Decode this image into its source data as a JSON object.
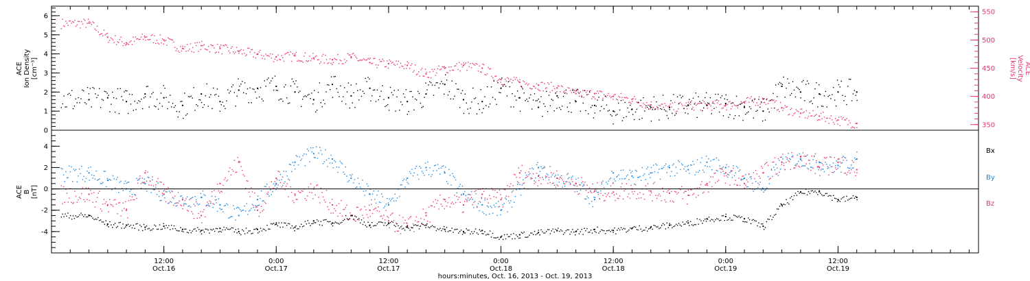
{
  "chart_data": [
    {
      "type": "scatter",
      "panel": "top",
      "ylabel_left": [
        "ACE",
        "Ion Density",
        "[cm⁻³]"
      ],
      "ylabel_right": [
        "ACE",
        "Velocity",
        "[km/s]"
      ],
      "ylim_left": [
        0,
        6.5
      ],
      "yticks_left": [
        "0",
        "1",
        "2",
        "3",
        "4",
        "5",
        "6"
      ],
      "ylim_right": [
        340,
        560
      ],
      "yticks_right": [
        "350",
        "400",
        "450",
        "500",
        "550"
      ],
      "grid": false,
      "colors": {
        "density": "#000000",
        "velocity": "#e8356a"
      },
      "series": [
        {
          "key": "density",
          "axis": "left",
          "x": [
            4,
            6,
            8,
            10,
            12,
            14,
            16,
            18,
            20,
            22,
            24,
            26,
            28,
            30,
            32,
            34,
            36,
            38,
            40,
            42,
            44,
            46,
            48,
            50,
            52,
            54,
            56,
            58,
            60,
            62,
            64,
            66,
            68,
            70,
            72,
            74,
            76,
            78,
            80,
            82,
            84,
            86
          ],
          "values": [
            1.6,
            1.7,
            1.5,
            1.9,
            1.7,
            1.3,
            1.9,
            1.5,
            2.1,
            2.2,
            2.3,
            2.0,
            1.6,
            2.4,
            1.8,
            2.2,
            1.7,
            1.5,
            1.9,
            2.4,
            1.6,
            1.5,
            2.2,
            1.7,
            1.2,
            1.8,
            1.5,
            1.3,
            1.0,
            1.1,
            1.2,
            1.2,
            1.3,
            1.3,
            1.4,
            1.2,
            1.0,
            2.3,
            2.0,
            1.9,
            2.0,
            2.0
          ]
        },
        {
          "key": "velocity",
          "axis": "right",
          "x": [
            4,
            6,
            8,
            10,
            12,
            14,
            16,
            18,
            20,
            22,
            24,
            26,
            28,
            30,
            32,
            34,
            36,
            38,
            40,
            42,
            44,
            46,
            48,
            50,
            52,
            54,
            56,
            58,
            60,
            62,
            64,
            66,
            68,
            70,
            72,
            74,
            76,
            78,
            80,
            82,
            84,
            86
          ],
          "values": [
            530,
            505,
            495,
            505,
            500,
            485,
            490,
            485,
            480,
            475,
            470,
            472,
            468,
            465,
            470,
            460,
            458,
            455,
            440,
            450,
            455,
            450,
            430,
            425,
            420,
            415,
            405,
            405,
            400,
            395,
            385,
            380,
            385,
            385,
            385,
            390,
            395,
            380,
            370,
            365,
            358,
            352
          ]
        }
      ]
    },
    {
      "type": "scatter",
      "panel": "bottom",
      "ylabel": [
        "ACE",
        "B",
        "[nT]"
      ],
      "ylim": [
        -6,
        5.5
      ],
      "yticks": [
        "-4",
        "-2",
        "0",
        "2",
        "4"
      ],
      "zero_line": true,
      "grid": false,
      "legend_placement": "right",
      "series": [
        {
          "key": "bx",
          "name": "Bx",
          "color": "#000000",
          "x": [
            4,
            6,
            8,
            10,
            12,
            14,
            16,
            18,
            20,
            22,
            24,
            26,
            28,
            30,
            32,
            34,
            36,
            38,
            40,
            42,
            44,
            46,
            48,
            50,
            52,
            54,
            56,
            58,
            60,
            62,
            64,
            66,
            68,
            70,
            72,
            74,
            76,
            78,
            80,
            82,
            84,
            86
          ],
          "values": [
            -2.5,
            -3.3,
            -3.4,
            -3.6,
            -3.5,
            -3.8,
            -3.9,
            -3.7,
            -4.0,
            -3.8,
            -3.3,
            -3.6,
            -3.0,
            -3.2,
            -2.5,
            -3.4,
            -3.2,
            -3.6,
            -3.4,
            -3.8,
            -4.0,
            -3.9,
            -4.5,
            -4.3,
            -4.1,
            -3.9,
            -4.0,
            -3.8,
            -3.9,
            -3.7,
            -3.6,
            -3.4,
            -3.2,
            -2.8,
            -2.6,
            -2.8,
            -3.5,
            -1.5,
            -0.3,
            -0.2,
            -1.0,
            -0.8
          ]
        },
        {
          "key": "by",
          "name": "By",
          "color": "#1a86e0",
          "x": [
            4,
            6,
            8,
            10,
            12,
            14,
            16,
            18,
            20,
            22,
            24,
            26,
            28,
            30,
            32,
            34,
            36,
            38,
            40,
            42,
            44,
            46,
            48,
            50,
            52,
            54,
            56,
            58,
            60,
            62,
            64,
            66,
            68,
            70,
            72,
            74,
            76,
            78,
            80,
            82,
            84,
            86
          ],
          "values": [
            1.5,
            0.8,
            0.0,
            0.5,
            -0.5,
            -1.0,
            -0.8,
            -1.5,
            -2.5,
            -1.0,
            0.5,
            2.5,
            3.3,
            2.8,
            1.0,
            -0.5,
            -1.5,
            1.0,
            2.0,
            1.5,
            -0.5,
            -1.5,
            -2.0,
            0.0,
            2.0,
            1.0,
            0.5,
            -1.0,
            1.5,
            1.2,
            1.5,
            2.0,
            1.8,
            2.5,
            2.0,
            1.0,
            0.0,
            2.5,
            2.8,
            2.5,
            2.2,
            2.8
          ]
        },
        {
          "key": "bz",
          "name": "Bz",
          "color": "#e8356a",
          "x": [
            4,
            6,
            8,
            10,
            12,
            14,
            16,
            18,
            20,
            22,
            24,
            26,
            28,
            30,
            32,
            34,
            36,
            38,
            40,
            42,
            44,
            46,
            48,
            50,
            52,
            54,
            56,
            58,
            60,
            62,
            64,
            66,
            68,
            70,
            72,
            74,
            76,
            78,
            80,
            82,
            84,
            86
          ],
          "values": [
            -0.5,
            -1.5,
            -2.0,
            1.5,
            -0.5,
            -1.0,
            -2.5,
            0.5,
            2.5,
            -2.0,
            1.0,
            -0.5,
            0.0,
            -1.5,
            -2.5,
            -2.0,
            -3.0,
            -3.5,
            -2.5,
            -1.0,
            -1.5,
            -0.5,
            -1.0,
            1.5,
            1.2,
            1.0,
            0.5,
            -0.2,
            -0.3,
            0.0,
            -0.2,
            -0.4,
            -0.6,
            0.5,
            1.5,
            0.5,
            1.5,
            2.5,
            3.0,
            2.0,
            2.5,
            1.8
          ]
        }
      ]
    }
  ],
  "x_axis": {
    "xlim": [
      0,
      99
    ],
    "ticks": [
      {
        "x": 12,
        "time": "12:00",
        "date": "Oct.16"
      },
      {
        "x": 24,
        "time": "0:00",
        "date": "Oct.17"
      },
      {
        "x": 36,
        "time": "12:00",
        "date": "Oct.17"
      },
      {
        "x": 48,
        "time": "0:00",
        "date": "Oct.18"
      },
      {
        "x": 60,
        "time": "12:00",
        "date": "Oct.18"
      },
      {
        "x": 72,
        "time": "0:00",
        "date": "Oct.19"
      },
      {
        "x": 84,
        "time": "12:00",
        "date": "Oct.19"
      }
    ],
    "caption": "hours:minutes, Oct. 16, 2013 - Oct. 19, 2013"
  }
}
